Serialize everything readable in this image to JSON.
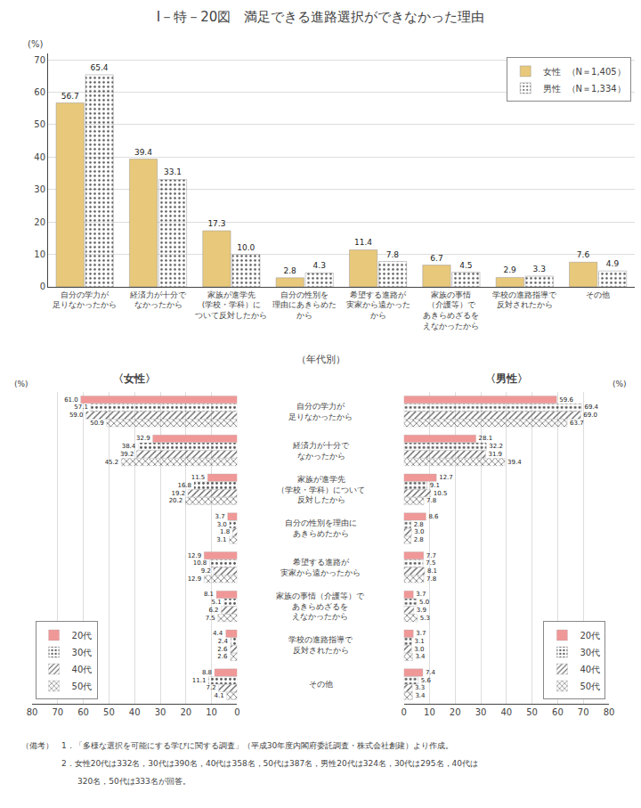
{
  "chart_data": [
    {
      "type": "bar",
      "title": "I－特－20図　満足できる進路選択ができなかった理由",
      "ylabel": "(%)",
      "categories": [
        "自分の学力が\n足りなかったから",
        "経済力が十分で\nなかったから",
        "家族が進学先\n(学校・学科）に\nついて反対したから",
        "自分の性別を\n理由にあきらめた\nから",
        "希望する進路が\n実家から遠かった\nから",
        "家族の事情\n（介護等）で\nあきらめざるを\nえなかったから",
        "学校の進路指導で\n反対されたから",
        "その他"
      ],
      "series": [
        {
          "name": "女性  （N＝1,405）",
          "color": "#e8c87a",
          "values": [
            56.7,
            39.4,
            17.3,
            2.8,
            11.4,
            6.7,
            2.9,
            7.6
          ],
          "value_labels": [
            "56.7",
            "39.4",
            "17.3",
            "2.8",
            "11.4",
            "6.7",
            "2.9",
            "7.6"
          ]
        },
        {
          "name": "男性  （N＝1,334）",
          "color": "#a8d8b8",
          "values": [
            65.4,
            33.1,
            10.0,
            4.3,
            7.8,
            4.5,
            3.3,
            4.9
          ],
          "value_labels": [
            "65.4",
            "33.1",
            "10.0",
            "4.3",
            "7.8",
            "4.5",
            "3.3",
            "4.9"
          ]
        }
      ],
      "ylim": [
        0,
        72
      ],
      "yticks": [
        0,
        10,
        20,
        30,
        40,
        50,
        60,
        70
      ],
      "grid": true,
      "legend": "upper right",
      "data_labels": true
    },
    {
      "type": "bar",
      "orientation": "horizontal",
      "title": "〈女性〉",
      "subtitle": "（年代別）",
      "xlabel": "(%)",
      "categories": [
        "自分の学力が\n足りなかったから",
        "経済力が十分で\nなかったから",
        "家族が進学先\n（学校・学科）について\n反対したから",
        "自分の性別を理由に\nあきらめたから",
        "希望する進路が\n実家から遠かったから",
        "家族の事情（介護等）で\nあきらめざるを\nえなかったから",
        "学校の進路指導で\n反対されたから",
        "その他"
      ],
      "series": [
        {
          "name": "20代",
          "color": "#f09898",
          "values": [
            61.0,
            32.9,
            11.5,
            3.7,
            12.9,
            8.1,
            4.4,
            8.8
          ],
          "value_labels": [
            "61.0",
            "32.9",
            "11.5",
            "3.7",
            "12.9",
            "8.1",
            "4.4",
            "8.8"
          ]
        },
        {
          "name": "30代",
          "color": "#90b8e8",
          "values": [
            57.1,
            38.4,
            16.8,
            3.0,
            10.8,
            5.1,
            2.4,
            11.1
          ],
          "value_labels": [
            "57.1",
            "38.4",
            "16.8",
            "3.0",
            "10.8",
            "5.1",
            "2.4",
            "11.1"
          ]
        },
        {
          "name": "40代",
          "color": "#c0d890",
          "values": [
            59.0,
            39.2,
            19.2,
            1.8,
            9.2,
            6.2,
            2.6,
            7.2
          ],
          "value_labels": [
            "59.0",
            "39.2",
            "19.2",
            "1.8",
            "9.2",
            "6.2",
            "2.6",
            "7.2"
          ]
        },
        {
          "name": "50代",
          "color": "#f0b8b8",
          "values": [
            50.9,
            45.2,
            20.2,
            3.1,
            12.9,
            7.5,
            2.6,
            4.1
          ],
          "value_labels": [
            "50.9",
            "45.2",
            "20.2",
            "3.1",
            "12.9",
            "7.5",
            "2.6",
            "4.1"
          ]
        }
      ],
      "xlim": [
        80,
        0
      ],
      "xticks": [
        80,
        70,
        60,
        50,
        40,
        30,
        20,
        10,
        0
      ],
      "grid": true,
      "legend": "lower left",
      "data_labels": true
    },
    {
      "type": "bar",
      "orientation": "horizontal",
      "title": "〈男性〉",
      "xlabel": "(%)",
      "categories": [
        "自分の学力が\n足りなかったから",
        "経済力が十分で\nなかったから",
        "家族が進学先\n（学校・学科）について\n反対したから",
        "自分の性別を理由に\nあきらめたから",
        "希望する進路が\n実家から遠かったから",
        "家族の事情（介護等）で\nあきらめざるを\nえなかったから",
        "学校の進路指導で\n反対されたから",
        "その他"
      ],
      "series": [
        {
          "name": "20代",
          "color": "#f09898",
          "values": [
            59.6,
            28.1,
            12.7,
            8.6,
            7.7,
            3.7,
            3.7,
            7.4
          ],
          "value_labels": [
            "59.6",
            "28.1",
            "12.7",
            "8.6",
            "7.7",
            "3.7",
            "3.7",
            "7.4"
          ]
        },
        {
          "name": "30代",
          "color": "#90b8e8",
          "values": [
            69.4,
            32.2,
            9.1,
            2.8,
            7.5,
            5.0,
            3.1,
            5.6
          ],
          "value_labels": [
            "69.4",
            "32.2",
            "9.1",
            "2.8",
            "7.5",
            "5.0",
            "3.1",
            "5.6"
          ]
        },
        {
          "name": "40代",
          "color": "#c0d890",
          "values": [
            69.0,
            31.9,
            10.5,
            3.0,
            8.1,
            3.9,
            3.0,
            3.3
          ],
          "value_labels": [
            "69.0",
            "31.9",
            "10.5",
            "3.0",
            "8.1",
            "3.9",
            "3.0",
            "3.3"
          ]
        },
        {
          "name": "50代",
          "color": "#f0b8b8",
          "values": [
            63.7,
            39.4,
            7.8,
            2.8,
            7.8,
            5.3,
            3.4,
            3.4
          ],
          "value_labels": [
            "63.7",
            "39.4",
            "7.8",
            "2.8",
            "7.8",
            "5.3",
            "3.4",
            "3.4"
          ]
        }
      ],
      "xlim": [
        0,
        80
      ],
      "xticks": [
        0,
        10,
        20,
        30,
        40,
        50,
        60,
        70,
        80
      ],
      "grid": true,
      "legend": "lower right",
      "data_labels": true,
      "annotations": [
        "（備考）　1．「多様な選択を可能にする学びに関する調査」（平成30年度内閣府委託調査・株式会社創建）より作成。",
        "　　　　　2．女性20代は332名，30代は390名，40代は358名，50代は387名，男性20代は324名，30代は295名，40代は",
        "　　　　　　　320名，50代は333名が回答。"
      ]
    }
  ]
}
